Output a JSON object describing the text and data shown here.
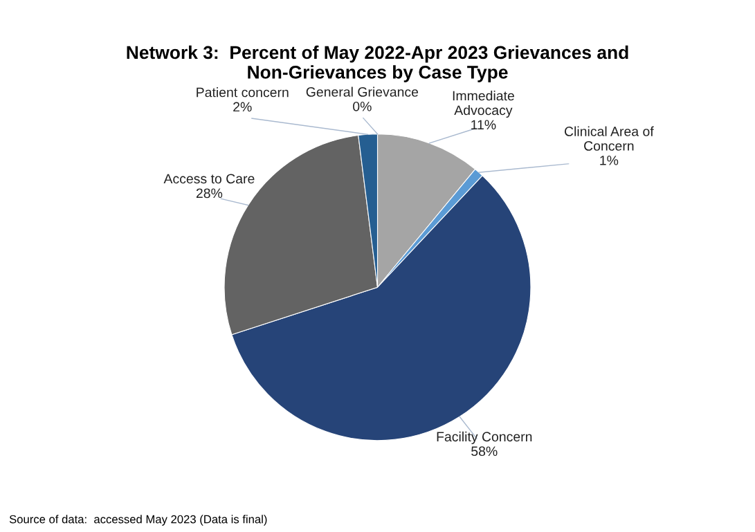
{
  "chart_data": {
    "type": "pie",
    "title": "Network 3:  Percent of May 2022-Apr 2023 Grievances and\nNon-Grievances by Case Type",
    "categories": [
      "General Grievance",
      "Immediate\nAdvocacy",
      "Clinical Area of\nConcern",
      "Facility Concern",
      "Access to Care",
      "Patient concern"
    ],
    "values": [
      0,
      11,
      1,
      58,
      28,
      2
    ],
    "value_labels": [
      "0%",
      "11%",
      "1%",
      "58%",
      "28%",
      "2%"
    ],
    "colors": [
      "#4472c4",
      "#a5a5a5",
      "#5b9bd5",
      "#264478",
      "#636363",
      "#255e91"
    ],
    "annotations": [
      "Source of data:  accessed May 2023 (Data is final)"
    ]
  }
}
